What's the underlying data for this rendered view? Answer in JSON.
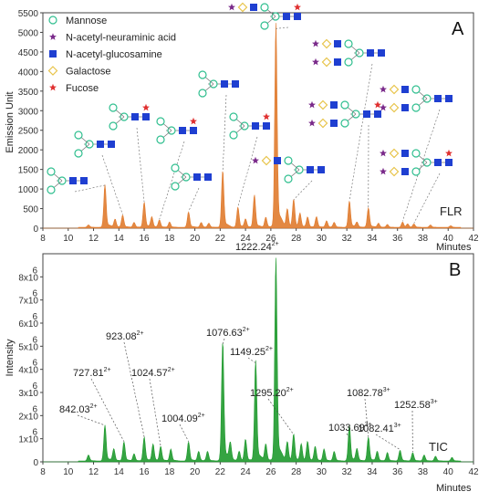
{
  "legend": [
    {
      "label": "Mannose",
      "icon": "green-circle-icon",
      "color": "#2fbf8f"
    },
    {
      "label": "N-acetyl-neuraminic acid",
      "icon": "purple-star-icon",
      "color": "#7a2a8a"
    },
    {
      "label": "N-acetyl-glucosamine",
      "icon": "blue-square-icon",
      "color": "#1f3fd1"
    },
    {
      "label": "Galactose",
      "icon": "yellow-diamond-icon",
      "color": "#e8c44a"
    },
    {
      "label": "Fucose",
      "icon": "red-star-icon",
      "color": "#e03030"
    }
  ],
  "chart_data": [
    {
      "type": "area",
      "panel_label": "A",
      "trace_label": "FLR",
      "xlabel": "Minutes",
      "ylabel": "Emission Unit",
      "xlim": [
        8,
        42
      ],
      "ylim": [
        0,
        5500
      ],
      "xticks": [
        "8",
        "10",
        "12",
        "14",
        "16",
        "18",
        "20",
        "22",
        "24",
        "26",
        "28",
        "30",
        "32",
        "34",
        "36",
        "38",
        "40",
        "42"
      ],
      "yticks": [
        "0",
        "500",
        "1000",
        "1500",
        "2000",
        "2500",
        "3000",
        "3500",
        "4000",
        "4500",
        "5000",
        "5500"
      ],
      "color": "#e07b2e",
      "peaks": [
        {
          "x": 11.6,
          "y": 60
        },
        {
          "x": 12.9,
          "y": 1050
        },
        {
          "x": 13.7,
          "y": 200
        },
        {
          "x": 14.3,
          "y": 300
        },
        {
          "x": 15.2,
          "y": 120
        },
        {
          "x": 16.0,
          "y": 620
        },
        {
          "x": 16.6,
          "y": 250
        },
        {
          "x": 17.2,
          "y": 180
        },
        {
          "x": 18.0,
          "y": 130
        },
        {
          "x": 19.5,
          "y": 380
        },
        {
          "x": 20.5,
          "y": 120
        },
        {
          "x": 21.1,
          "y": 100
        },
        {
          "x": 22.2,
          "y": 1400
        },
        {
          "x": 23.4,
          "y": 500
        },
        {
          "x": 24.0,
          "y": 200
        },
        {
          "x": 24.7,
          "y": 800
        },
        {
          "x": 25.6,
          "y": 250
        },
        {
          "x": 26.4,
          "y": 5050
        },
        {
          "x": 27.3,
          "y": 450
        },
        {
          "x": 27.8,
          "y": 680
        },
        {
          "x": 28.3,
          "y": 330
        },
        {
          "x": 28.9,
          "y": 250
        },
        {
          "x": 29.6,
          "y": 260
        },
        {
          "x": 30.4,
          "y": 160
        },
        {
          "x": 31.0,
          "y": 120
        },
        {
          "x": 32.2,
          "y": 650
        },
        {
          "x": 32.8,
          "y": 120
        },
        {
          "x": 33.7,
          "y": 480
        },
        {
          "x": 34.5,
          "y": 100
        },
        {
          "x": 35.2,
          "y": 70
        },
        {
          "x": 36.4,
          "y": 130
        },
        {
          "x": 36.8,
          "y": 80
        },
        {
          "x": 37.3,
          "y": 80
        },
        {
          "x": 38.6,
          "y": 60
        },
        {
          "x": 40.2,
          "y": 40
        }
      ]
    },
    {
      "type": "area",
      "panel_label": "B",
      "trace_label": "TIC",
      "xlabel": "Minutes",
      "ylabel": "Intensity",
      "xlim": [
        8,
        42
      ],
      "ylim": [
        0,
        9000000
      ],
      "xticks": [
        "8",
        "10",
        "12",
        "14",
        "16",
        "18",
        "20",
        "22",
        "24",
        "26",
        "28",
        "30",
        "32",
        "34",
        "36",
        "38",
        "40",
        "42"
      ],
      "yticks": [
        {
          "value": 0,
          "mant": "0",
          "exp": ""
        },
        {
          "value": 1000000,
          "mant": "1x10",
          "exp": "6"
        },
        {
          "value": 2000000,
          "mant": "2x10",
          "exp": "6"
        },
        {
          "value": 3000000,
          "mant": "3x10",
          "exp": "6"
        },
        {
          "value": 4000000,
          "mant": "4x10",
          "exp": "6"
        },
        {
          "value": 5000000,
          "mant": "5x10",
          "exp": "6"
        },
        {
          "value": 6000000,
          "mant": "6x10",
          "exp": "6"
        },
        {
          "value": 7000000,
          "mant": "7x10",
          "exp": "6"
        },
        {
          "value": 8000000,
          "mant": "8x10",
          "exp": "6"
        }
      ],
      "color": "#1f9a2e",
      "peaks": [
        {
          "x": 11.6,
          "y": 250000
        },
        {
          "x": 12.9,
          "y": 1500000
        },
        {
          "x": 13.6,
          "y": 500000
        },
        {
          "x": 14.4,
          "y": 800000
        },
        {
          "x": 15.2,
          "y": 300000
        },
        {
          "x": 16.0,
          "y": 1000000
        },
        {
          "x": 16.7,
          "y": 700000
        },
        {
          "x": 17.3,
          "y": 600000
        },
        {
          "x": 18.1,
          "y": 500000
        },
        {
          "x": 19.5,
          "y": 800000
        },
        {
          "x": 20.3,
          "y": 400000
        },
        {
          "x": 21.0,
          "y": 400000
        },
        {
          "x": 22.2,
          "y": 5000000
        },
        {
          "x": 22.8,
          "y": 700000
        },
        {
          "x": 23.5,
          "y": 400000
        },
        {
          "x": 24.0,
          "y": 900000
        },
        {
          "x": 24.8,
          "y": 4200000
        },
        {
          "x": 25.6,
          "y": 700000
        },
        {
          "x": 26.4,
          "y": 8500000
        },
        {
          "x": 27.3,
          "y": 800000
        },
        {
          "x": 27.8,
          "y": 1100000
        },
        {
          "x": 28.4,
          "y": 700000
        },
        {
          "x": 28.9,
          "y": 800000
        },
        {
          "x": 29.5,
          "y": 600000
        },
        {
          "x": 30.2,
          "y": 500000
        },
        {
          "x": 31.0,
          "y": 400000
        },
        {
          "x": 32.2,
          "y": 1500000
        },
        {
          "x": 32.8,
          "y": 500000
        },
        {
          "x": 33.7,
          "y": 1000000
        },
        {
          "x": 34.4,
          "y": 400000
        },
        {
          "x": 35.2,
          "y": 350000
        },
        {
          "x": 36.2,
          "y": 450000
        },
        {
          "x": 37.2,
          "y": 350000
        },
        {
          "x": 38.1,
          "y": 250000
        },
        {
          "x": 39.0,
          "y": 200000
        },
        {
          "x": 40.3,
          "y": 150000
        }
      ],
      "annotations": [
        {
          "text": "842.03",
          "charge": "2+",
          "peak_x": 12.9
        },
        {
          "text": "727.81",
          "charge": "2+",
          "peak_x": 14.4
        },
        {
          "text": "923.08",
          "charge": "2+",
          "peak_x": 16.0
        },
        {
          "text": "1024.57",
          "charge": "2+",
          "peak_x": 17.3
        },
        {
          "text": "1004.09",
          "charge": "2+",
          "peak_x": 19.5
        },
        {
          "text": "1076.63",
          "charge": "2+",
          "peak_x": 22.2
        },
        {
          "text": "1149.25",
          "charge": "2+",
          "peak_x": 24.8
        },
        {
          "text": "1222.24",
          "charge": "2+",
          "peak_x": 26.4
        },
        {
          "text": "1295.20",
          "charge": "2+",
          "peak_x": 27.8
        },
        {
          "text": "1033.69",
          "charge": "3+",
          "peak_x": 32.2
        },
        {
          "text": "1082.78",
          "charge": "3+",
          "peak_x": 33.7
        },
        {
          "text": "1082.41",
          "charge": "3+",
          "peak_x": 36.2
        },
        {
          "text": "1252.58",
          "charge": "3+",
          "peak_x": 37.2
        }
      ]
    }
  ]
}
